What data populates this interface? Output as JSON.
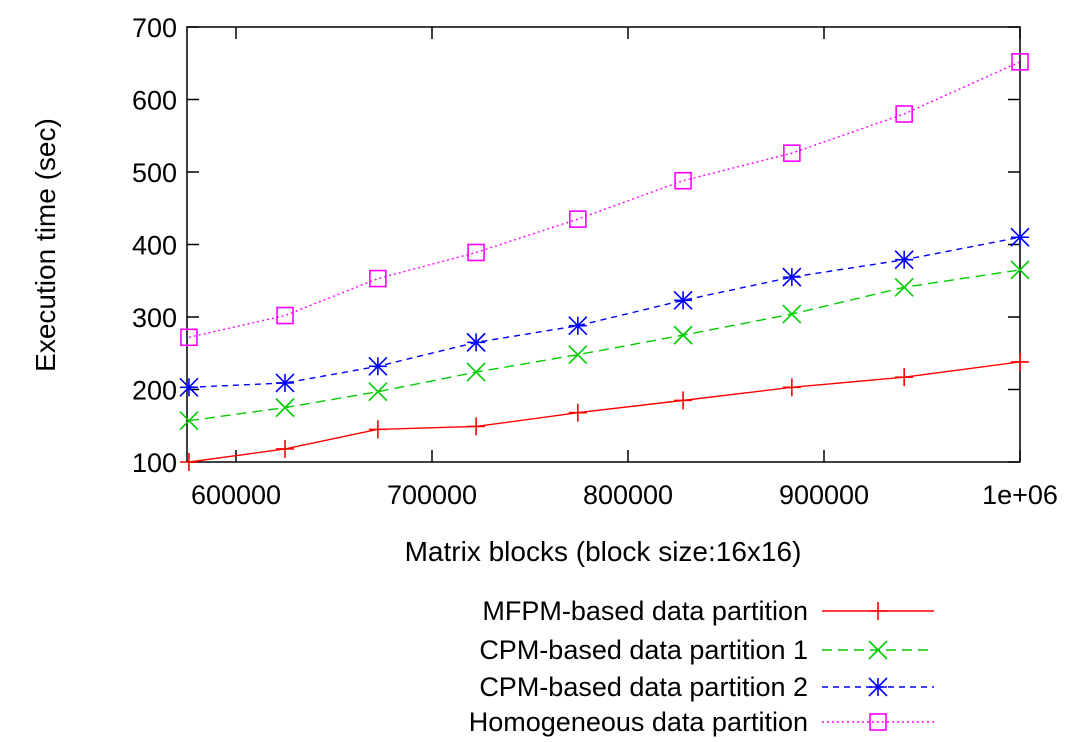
{
  "chart_data": {
    "type": "line",
    "title": "",
    "xlabel": "Matrix blocks (block size:16x16)",
    "ylabel": "Execution time (sec)",
    "xlim": [
      575000,
      1000000
    ],
    "ylim": [
      100,
      700
    ],
    "xticks": [
      {
        "value": 600000,
        "label": "600000"
      },
      {
        "value": 700000,
        "label": "700000"
      },
      {
        "value": 800000,
        "label": "800000"
      },
      {
        "value": 900000,
        "label": "900000"
      },
      {
        "value": 1000000,
        "label": "1e+06"
      }
    ],
    "yticks": [
      {
        "value": 100,
        "label": "100"
      },
      {
        "value": 200,
        "label": "200"
      },
      {
        "value": 300,
        "label": "300"
      },
      {
        "value": 400,
        "label": "400"
      },
      {
        "value": 500,
        "label": "500"
      },
      {
        "value": 600,
        "label": "600"
      },
      {
        "value": 700,
        "label": "700"
      }
    ],
    "grid": false,
    "legend_position": "bottom-center, below plot",
    "x": [
      576000,
      625000,
      672400,
      722500,
      774400,
      828100,
      883600,
      940900,
      1000000
    ],
    "series": [
      {
        "name": "MFPM-based data partition",
        "color": "#ff0000",
        "marker": "plus",
        "dash": "solid",
        "values": [
          100,
          118,
          145,
          149,
          168,
          185,
          203,
          217,
          238
        ]
      },
      {
        "name": "CPM-based data partition 1",
        "color": "#00cc00",
        "marker": "cross",
        "dash": "dashed",
        "values": [
          157,
          175,
          197,
          224,
          248,
          275,
          304,
          341,
          365
        ]
      },
      {
        "name": "CPM-based data partition 2",
        "color": "#0000ff",
        "marker": "star",
        "dash": "dashed-short",
        "values": [
          203,
          209,
          232,
          265,
          288,
          323,
          355,
          379,
          410
        ]
      },
      {
        "name": "Homogeneous data partition",
        "color": "#ff00ff",
        "marker": "square",
        "dash": "dotted",
        "values": [
          272,
          302,
          353,
          389,
          435,
          488,
          526,
          580,
          652
        ]
      }
    ]
  }
}
